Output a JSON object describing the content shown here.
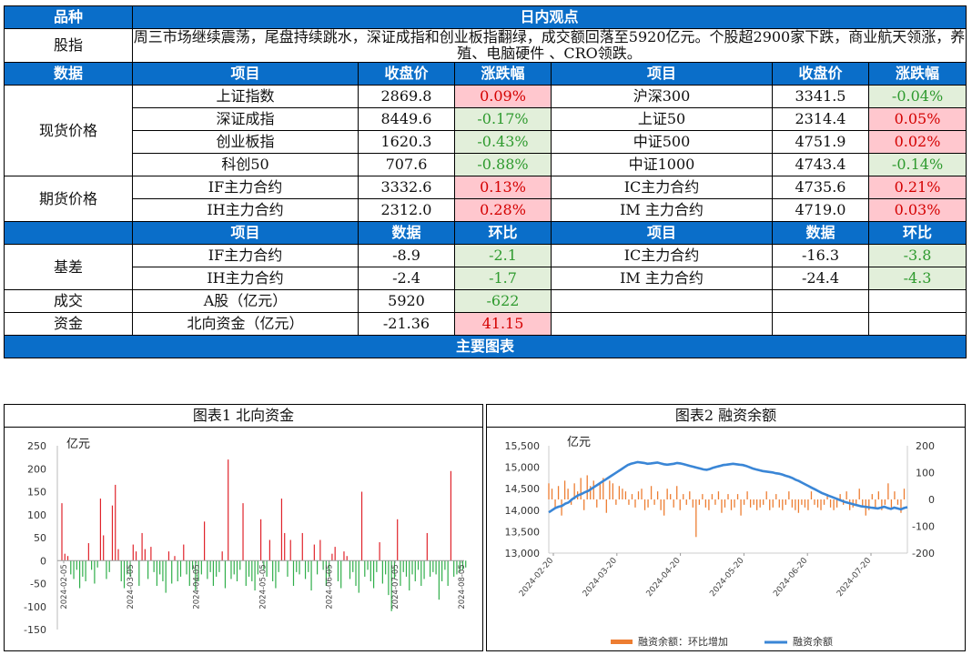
{
  "header": {
    "variety_label": "品种",
    "view_label": "日内观点"
  },
  "commentary": {
    "label": "股指",
    "text": "周三市场继续震荡，尾盘持续跳水，深证成指和创业板指翻绿，成交额回落至5920亿元。个股超2900家下跌，商业航天领涨，养殖、电脑硬件 、CRO领跌。"
  },
  "data_header": {
    "section": "数据",
    "item": "项目",
    "close": "收盘价",
    "change": "涨跌幅"
  },
  "spot": {
    "label": "现货价格",
    "rows": [
      {
        "l_name": "上证指数",
        "l_close": "2869.8",
        "l_chg": "0.09%",
        "l_dir": "up",
        "r_name": "沪深300",
        "r_close": "3341.5",
        "r_chg": "-0.04%",
        "r_dir": "down"
      },
      {
        "l_name": "深证成指",
        "l_close": "8449.6",
        "l_chg": "-0.17%",
        "l_dir": "down",
        "r_name": "上证50",
        "r_close": "2314.4",
        "r_chg": "0.05%",
        "r_dir": "up"
      },
      {
        "l_name": "创业板指",
        "l_close": "1620.3",
        "l_chg": "-0.43%",
        "l_dir": "down",
        "r_name": "中证500",
        "r_close": "4751.9",
        "r_chg": "0.02%",
        "r_dir": "up"
      },
      {
        "l_name": "科创50",
        "l_close": "707.6",
        "l_chg": "-0.88%",
        "l_dir": "down",
        "r_name": "中证1000",
        "r_close": "4743.4",
        "r_chg": "-0.14%",
        "r_dir": "down"
      }
    ]
  },
  "futures": {
    "label": "期货价格",
    "rows": [
      {
        "l_name": "IF主力合约",
        "l_close": "3332.6",
        "l_chg": "0.13%",
        "l_dir": "up",
        "r_name": "IC主力合约",
        "r_close": "4735.6",
        "r_chg": "0.21%",
        "r_dir": "up"
      },
      {
        "l_name": "IH主力合约",
        "l_close": "2312.0",
        "l_chg": "0.28%",
        "l_dir": "up",
        "r_name": "IM 主力合约",
        "r_close": "4719.0",
        "r_chg": "0.03%",
        "r_dir": "up"
      }
    ]
  },
  "data_header2": {
    "item": "项目",
    "data": "数据",
    "mom": "环比"
  },
  "basis": {
    "label": "基差",
    "rows": [
      {
        "l_name": "IF主力合约",
        "l_val": "-8.9",
        "l_mom": "-2.1",
        "l_dir": "down",
        "r_name": "IC主力合约",
        "r_val": "-16.3",
        "r_mom": "-3.8",
        "r_dir": "down"
      },
      {
        "l_name": "IH主力合约",
        "l_val": "-2.4",
        "l_mom": "-1.7",
        "l_dir": "down",
        "r_name": "IM 主力合约",
        "r_val": "-24.4",
        "r_mom": "-4.3",
        "r_dir": "down"
      }
    ]
  },
  "volume": {
    "label": "成交",
    "name": "A股（亿元）",
    "val": "5920",
    "mom": "-622",
    "dir": "down"
  },
  "funds": {
    "label": "资金",
    "name": "北向资金（亿元）",
    "val": "-21.36",
    "mom": "41.15",
    "dir": "up"
  },
  "charts_header": "主要图表",
  "chart_data": [
    {
      "type": "bar",
      "title": "图表1 北向资金",
      "ylabel": "亿元",
      "ylim": [
        -150,
        250
      ],
      "yticks": [
        "250",
        "200",
        "150",
        "100",
        "50",
        "0",
        "-50",
        "-100",
        "-150"
      ],
      "xticks": [
        "2024-02-05",
        "2024-03-05",
        "2024-04-05",
        "2024-05-05",
        "2024-06-05",
        "2024-07-05",
        "2024-08-05"
      ],
      "values": [
        125,
        15,
        10,
        -30,
        -40,
        -20,
        -60,
        -35,
        -45,
        38,
        -20,
        -50,
        -15,
        135,
        55,
        -40,
        -25,
        120,
        165,
        25,
        -45,
        -60,
        -30,
        -35,
        35,
        20,
        -55,
        60,
        25,
        -40,
        30,
        -25,
        -55,
        -30,
        -45,
        -70,
        20,
        -50,
        10,
        -45,
        -35,
        35,
        -30,
        -55,
        -20,
        -65,
        -45,
        -30,
        85,
        -40,
        -25,
        -55,
        -35,
        -25,
        20,
        -60,
        220,
        -40,
        -30,
        -45,
        -20,
        125,
        -55,
        -35,
        -45,
        -65,
        -30,
        90,
        -20,
        -35,
        45,
        -45,
        -60,
        -25,
        135,
        60,
        -35,
        45,
        -55,
        -25,
        -30,
        60,
        -40,
        -25,
        -65,
        35,
        -30,
        45,
        -20,
        -55,
        -35,
        15,
        30,
        -45,
        -60,
        20,
        10,
        -40,
        -25,
        -55,
        -70,
        150,
        -35,
        -20,
        -45,
        -60,
        -25,
        40,
        -50,
        -30,
        -75,
        -110,
        -40,
        90,
        -55,
        -25,
        -35,
        -65,
        -30,
        -45,
        -20,
        -55,
        -40,
        60,
        -35,
        -25,
        -30,
        -85,
        -45,
        -20,
        -55,
        195,
        -35,
        -30,
        -25,
        -20,
        -15
      ]
    },
    {
      "type": "line+bar",
      "title": "图表2 融资余额",
      "ylabel": "亿元",
      "left_yticks": [
        "15,500",
        "15,000",
        "14,500",
        "14,000",
        "13,500",
        "13,000"
      ],
      "right_yticks": [
        "200",
        "100",
        "0",
        "-100",
        "-200"
      ],
      "left_ylim": [
        13000,
        15500
      ],
      "right_ylim": [
        -200,
        200
      ],
      "xticks": [
        "2024-02-20",
        "2024-03-20",
        "2024-04-20",
        "2024-05-20",
        "2024-06-20",
        "2024-07-20"
      ],
      "legend_bar": "融资余额：环比增加",
      "legend_line": "融资余额",
      "line_values": [
        13950,
        14000,
        14050,
        14080,
        14100,
        14150,
        14180,
        14250,
        14300,
        14350,
        14380,
        14420,
        14450,
        14500,
        14550,
        14600,
        14650,
        14700,
        14750,
        14800,
        14850,
        14900,
        14950,
        15000,
        15050,
        15080,
        15100,
        15120,
        15110,
        15100,
        15080,
        15090,
        15100,
        15110,
        15090,
        15070,
        15060,
        15070,
        15080,
        15100,
        15090,
        15070,
        15050,
        15030,
        15010,
        14990,
        14970,
        14950,
        14940,
        14960,
        14990,
        15010,
        15030,
        15050,
        15060,
        15070,
        15080,
        15070,
        15060,
        15050,
        15030,
        15000,
        14970,
        14950,
        14930,
        14910,
        14900,
        14890,
        14880,
        14860,
        14850,
        14830,
        14800,
        14780,
        14750,
        14710,
        14680,
        14640,
        14600,
        14560,
        14520,
        14480,
        14440,
        14400,
        14370,
        14340,
        14310,
        14280,
        14250,
        14220,
        14190,
        14170,
        14150,
        14130,
        14110,
        14090,
        14080,
        14070,
        14060,
        14050,
        14040,
        14060,
        14080,
        14050,
        14030,
        14060,
        14040,
        14020,
        14050,
        14070
      ],
      "bar_values": [
        60,
        40,
        -30,
        50,
        -60,
        70,
        40,
        -20,
        60,
        30,
        80,
        -40,
        90,
        50,
        70,
        -30,
        60,
        80,
        -50,
        70,
        60,
        -20,
        50,
        40,
        30,
        -20,
        20,
        -30,
        30,
        40,
        -40,
        -30,
        50,
        -20,
        30,
        -40,
        -60,
        40,
        20,
        -30,
        50,
        -40,
        20,
        -20,
        30,
        -30,
        -140,
        -20,
        20,
        -30,
        -40,
        20,
        -20,
        30,
        -50,
        -30,
        20,
        -40,
        -30,
        20,
        -60,
        -20,
        30,
        -30,
        -20,
        -40,
        -30,
        -20,
        30,
        -40,
        -30,
        20,
        -30,
        -40,
        -20,
        30,
        -30,
        -40,
        -50,
        -20,
        -30,
        -40,
        30,
        -20,
        -30,
        -40,
        -20,
        20,
        -30,
        -40,
        -30,
        20,
        -20,
        30,
        -40,
        -30,
        -20,
        40,
        -30,
        -60,
        -40,
        20,
        -30,
        30,
        -40,
        -20,
        60,
        -30,
        30,
        -20,
        -50,
        40
      ]
    }
  ]
}
